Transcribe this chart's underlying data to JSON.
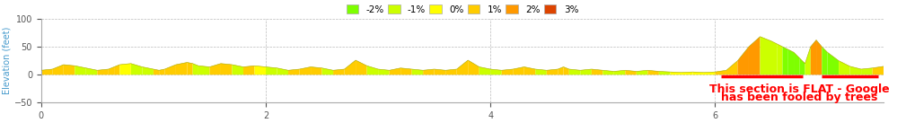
{
  "xlim": [
    0,
    7.5
  ],
  "ylim": [
    -50,
    100
  ],
  "yticks": [
    -50,
    0,
    50,
    100
  ],
  "xticks": [
    0,
    2,
    4,
    6
  ],
  "ylabel": "Elevation (feet)",
  "background_color": "#ffffff",
  "grid_color": "#bbbbbb",
  "annotation_text_line1": "This section is FLAT - Google",
  "annotation_text_line2": "has been fooled by trees",
  "annotation_color": "red",
  "annotation_fontsize": 9,
  "annotation_fontweight": "bold",
  "redline_x1": 6.05,
  "redline_x2": 7.45,
  "redline_y": -3,
  "redline_gap_x1": 6.78,
  "redline_gap_x2": 6.95,
  "legend_items": [
    {
      "label": "-2%",
      "color": "#7eff00"
    },
    {
      "label": "-1%",
      "color": "#ccff00"
    },
    {
      "label": "0%",
      "color": "#ffff00"
    },
    {
      "label": "1%",
      "color": "#ffcc00"
    },
    {
      "label": "2%",
      "color": "#ff9900"
    },
    {
      "label": "3%",
      "color": "#dd4400"
    }
  ],
  "x": [
    0.0,
    0.1,
    0.2,
    0.3,
    0.4,
    0.5,
    0.6,
    0.65,
    0.7,
    0.8,
    0.9,
    1.0,
    1.05,
    1.1,
    1.2,
    1.3,
    1.35,
    1.4,
    1.5,
    1.6,
    1.7,
    1.8,
    1.9,
    2.0,
    2.1,
    2.2,
    2.3,
    2.4,
    2.5,
    2.6,
    2.7,
    2.8,
    2.9,
    3.0,
    3.1,
    3.2,
    3.3,
    3.4,
    3.5,
    3.6,
    3.7,
    3.8,
    3.9,
    4.0,
    4.1,
    4.2,
    4.3,
    4.4,
    4.5,
    4.6,
    4.65,
    4.7,
    4.8,
    4.9,
    5.0,
    5.1,
    5.2,
    5.3,
    5.4,
    5.5,
    5.6,
    5.7,
    5.8,
    5.9,
    6.0,
    6.1,
    6.2,
    6.3,
    6.4,
    6.5,
    6.55,
    6.6,
    6.65,
    6.7,
    6.75,
    6.8,
    6.85,
    6.9,
    6.95,
    7.0,
    7.1,
    7.2,
    7.3,
    7.4,
    7.5
  ],
  "y": [
    8,
    10,
    18,
    16,
    12,
    8,
    10,
    14,
    18,
    20,
    14,
    10,
    8,
    10,
    18,
    22,
    20,
    16,
    14,
    20,
    18,
    14,
    16,
    14,
    12,
    8,
    10,
    14,
    12,
    8,
    10,
    26,
    16,
    10,
    8,
    12,
    10,
    8,
    10,
    8,
    10,
    26,
    14,
    10,
    8,
    10,
    14,
    10,
    8,
    10,
    14,
    10,
    8,
    10,
    8,
    6,
    8,
    6,
    8,
    6,
    5,
    4,
    5,
    4,
    5,
    8,
    25,
    50,
    68,
    60,
    55,
    50,
    45,
    40,
    30,
    20,
    50,
    62,
    50,
    40,
    25,
    15,
    10,
    12,
    15
  ],
  "colors": [
    "#ffcc00",
    "#ffcc00",
    "#ffcc00",
    "#ccff00",
    "#ccff00",
    "#ffcc00",
    "#ffcc00",
    "#ffcc00",
    "#ffff00",
    "#ccff00",
    "#ccff00",
    "#ffcc00",
    "#ffcc00",
    "#ffcc00",
    "#ffcc00",
    "#ffcc00",
    "#ccff00",
    "#ccff00",
    "#ffcc00",
    "#ffcc00",
    "#ccff00",
    "#ffcc00",
    "#ffff00",
    "#ccff00",
    "#ccff00",
    "#ffcc00",
    "#ffcc00",
    "#ffcc00",
    "#ccff00",
    "#ffcc00",
    "#ffcc00",
    "#ffcc00",
    "#ccff00",
    "#ccff00",
    "#ffcc00",
    "#ffcc00",
    "#ccff00",
    "#ffcc00",
    "#ffcc00",
    "#ffcc00",
    "#ffcc00",
    "#ffcc00",
    "#ccff00",
    "#ccff00",
    "#ffcc00",
    "#ffcc00",
    "#ffcc00",
    "#ccff00",
    "#ffcc00",
    "#ffcc00",
    "#ffcc00",
    "#ccff00",
    "#ccff00",
    "#ffcc00",
    "#ccff00",
    "#ccff00",
    "#ffcc00",
    "#ccff00",
    "#ffcc00",
    "#ccff00",
    "#ffff00",
    "#ffff00",
    "#ffff00",
    "#ffff00",
    "#ffcc00",
    "#ffcc00",
    "#ff9900",
    "#ff9900",
    "#ccff00",
    "#ccff00",
    "#ccff00",
    "#7eff00",
    "#7eff00",
    "#7eff00",
    "#7eff00",
    "#ccff00",
    "#ff9900",
    "#ff9900",
    "#7eff00",
    "#7eff00",
    "#ccff00",
    "#ccff00",
    "#ccff00",
    "#ffcc00"
  ]
}
